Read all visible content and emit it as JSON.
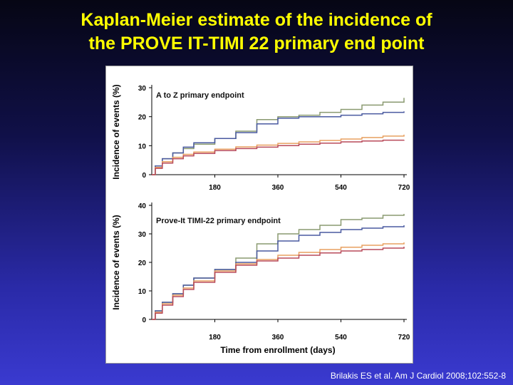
{
  "slide": {
    "title_line1": "Kaplan-Meier estimate of the incidence of",
    "title_line2": "the PROVE IT-TIMI 22 primary end point",
    "citation": "Brilakis ES et al. Am J Cardiol 2008;102:552-8"
  },
  "colors": {
    "title": "#ffff00",
    "background_top": "#060614",
    "background_bottom": "#3a3ad0",
    "series_green": "#8a9a70",
    "series_blue": "#4a5aa0",
    "series_orange": "#e8a060",
    "series_red": "#b84a5a"
  },
  "chart_data": [
    {
      "type": "line",
      "step": true,
      "panel_label": "A to Z primary endpoint",
      "ylabel": "Incidence of events (%)",
      "xlabel": "",
      "xlim": [
        0,
        720
      ],
      "ylim": [
        0,
        30
      ],
      "xticks": [
        180,
        360,
        540,
        720
      ],
      "yticks": [
        0,
        10,
        20,
        30
      ],
      "series": [
        {
          "color": "#8a9a70",
          "x": [
            0,
            10,
            30,
            60,
            90,
            120,
            180,
            240,
            300,
            360,
            420,
            480,
            540,
            600,
            660,
            720
          ],
          "y": [
            0,
            3,
            5.5,
            7.5,
            9,
            10.5,
            12.5,
            15,
            19,
            20,
            20.5,
            21.5,
            22.5,
            24,
            25,
            26.5
          ]
        },
        {
          "color": "#4a5aa0",
          "x": [
            0,
            10,
            30,
            60,
            90,
            120,
            180,
            240,
            300,
            360,
            420,
            480,
            540,
            600,
            660,
            720
          ],
          "y": [
            0,
            3,
            5.5,
            7.5,
            9.5,
            11,
            12.5,
            14.5,
            17.5,
            19.5,
            20,
            20,
            20.5,
            21,
            21.5,
            21.8
          ]
        },
        {
          "color": "#e8a060",
          "x": [
            0,
            10,
            30,
            60,
            90,
            120,
            180,
            240,
            300,
            360,
            420,
            480,
            540,
            600,
            660,
            720
          ],
          "y": [
            0,
            2.5,
            4.5,
            6,
            7,
            7.8,
            8.8,
            9.6,
            10.2,
            10.8,
            11.3,
            11.8,
            12.3,
            12.8,
            13.3,
            13.8
          ]
        },
        {
          "color": "#b84a5a",
          "x": [
            0,
            10,
            30,
            60,
            90,
            120,
            180,
            240,
            300,
            360,
            420,
            480,
            540,
            600,
            660,
            720
          ],
          "y": [
            0,
            2.2,
            4,
            5.5,
            6.5,
            7.3,
            8.3,
            9,
            9.5,
            10,
            10.5,
            10.9,
            11.3,
            11.6,
            11.9,
            12
          ]
        }
      ]
    },
    {
      "type": "line",
      "step": true,
      "panel_label": "Prove-It TIMI-22 primary endpoint",
      "ylabel": "Incidence of events (%)",
      "xlabel": "Time from enrollment (days)",
      "xlim": [
        0,
        720
      ],
      "ylim": [
        0,
        40
      ],
      "xticks": [
        180,
        360,
        540,
        720
      ],
      "yticks": [
        0,
        10,
        20,
        30,
        40
      ],
      "series": [
        {
          "color": "#8a9a70",
          "x": [
            0,
            10,
            30,
            60,
            90,
            120,
            180,
            240,
            300,
            360,
            420,
            480,
            540,
            600,
            660,
            720
          ],
          "y": [
            0,
            3,
            6,
            9,
            12,
            14.5,
            17.5,
            21.5,
            26.5,
            30,
            31.5,
            33,
            35,
            35.5,
            36.5,
            37
          ]
        },
        {
          "color": "#4a5aa0",
          "x": [
            0,
            10,
            30,
            60,
            90,
            120,
            180,
            240,
            300,
            360,
            420,
            480,
            540,
            600,
            660,
            720
          ],
          "y": [
            0,
            3,
            6,
            9,
            12,
            14.5,
            17.5,
            20,
            24,
            27.5,
            29.5,
            30.5,
            31.5,
            32,
            32.5,
            33
          ]
        },
        {
          "color": "#e8a060",
          "x": [
            0,
            10,
            30,
            60,
            90,
            120,
            180,
            240,
            300,
            360,
            420,
            480,
            540,
            600,
            660,
            720
          ],
          "y": [
            0,
            2.5,
            5.5,
            8.5,
            11,
            13.5,
            17,
            19.5,
            21,
            22.5,
            23.5,
            24.5,
            25.3,
            26,
            26.5,
            27
          ]
        },
        {
          "color": "#b84a5a",
          "x": [
            0,
            10,
            30,
            60,
            90,
            120,
            180,
            240,
            300,
            360,
            420,
            480,
            540,
            600,
            660,
            720
          ],
          "y": [
            0,
            2.2,
            5,
            8,
            10.5,
            13,
            16.5,
            19,
            20.5,
            21.5,
            22.5,
            23.3,
            24,
            24.5,
            25,
            25.5
          ]
        }
      ]
    }
  ]
}
